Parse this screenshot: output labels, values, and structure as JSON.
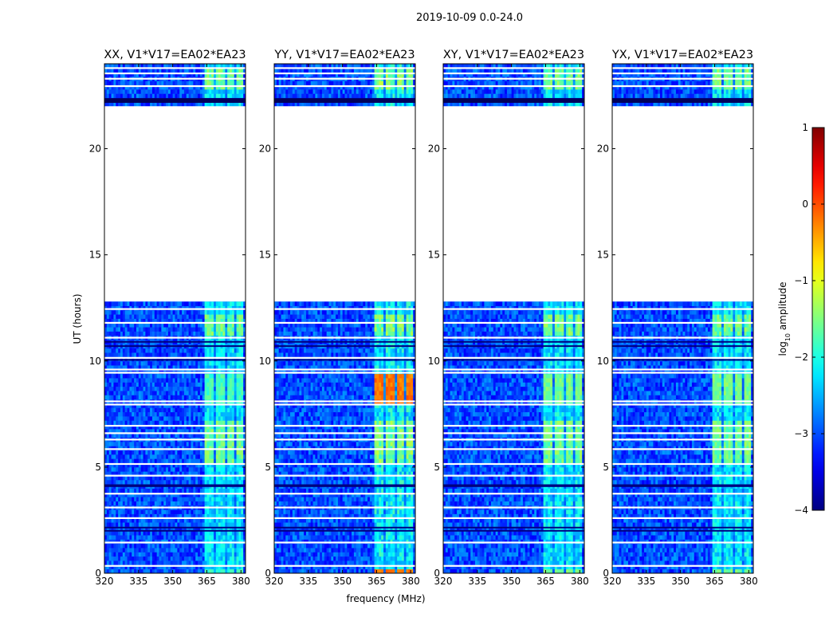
{
  "chart_data": {
    "type": "heatmap",
    "title": "2019-10-09 0.0-24.0",
    "xlabel": "frequency (MHz)",
    "ylabel": "UT (hours)",
    "xlim": [
      320,
      382
    ],
    "ylim": [
      0,
      24
    ],
    "x_ticks": [
      320,
      335,
      350,
      365,
      380
    ],
    "y_ticks": [
      0,
      5,
      10,
      15,
      20
    ],
    "colorbar": {
      "label": "log10 amplitude",
      "label_main": "log",
      "label_sub": "10",
      "label_rest": " amplitude",
      "range": [
        -4,
        1
      ],
      "ticks": [
        1,
        0,
        -1,
        -2,
        -3,
        -4
      ],
      "colormap": "jet"
    },
    "panels": [
      {
        "name": "XX, V1*V17=EA02*EA23",
        "pol": "XX",
        "intensity": 1.0,
        "peak": 0.4
      },
      {
        "name": "YY, V1*V17=EA02*EA23",
        "pol": "YY",
        "intensity": 1.25,
        "peak": 0.72
      },
      {
        "name": "XY, V1*V17=EA02*EA23",
        "pol": "XY",
        "intensity": 1.05,
        "peak": 0.45
      },
      {
        "name": "YX, V1*V17=EA02*EA23",
        "pol": "YX",
        "intensity": 1.05,
        "peak": 0.45
      }
    ],
    "data_gap_ut": [
      12.8,
      22.0
    ],
    "rfi_band_mhz": [
      364,
      380
    ],
    "rfi_channels_mhz": [
      [
        364,
        368
      ],
      [
        369,
        373
      ],
      [
        374,
        377
      ],
      [
        378,
        380.5
      ]
    ],
    "blank_rows_ut": [
      0.35,
      1.45,
      2.6,
      3.1,
      3.75,
      4.6,
      5.15,
      5.85,
      6.3,
      6.6,
      6.95,
      7.95,
      8.1,
      9.45,
      9.6,
      10.15,
      11.1,
      11.8,
      12.45,
      22.95,
      23.3,
      23.55,
      23.8
    ],
    "dark_rows_ut": [
      2.0,
      2.15,
      4.1,
      4.15,
      10.05,
      10.7,
      10.9,
      22.2,
      22.35
    ]
  }
}
